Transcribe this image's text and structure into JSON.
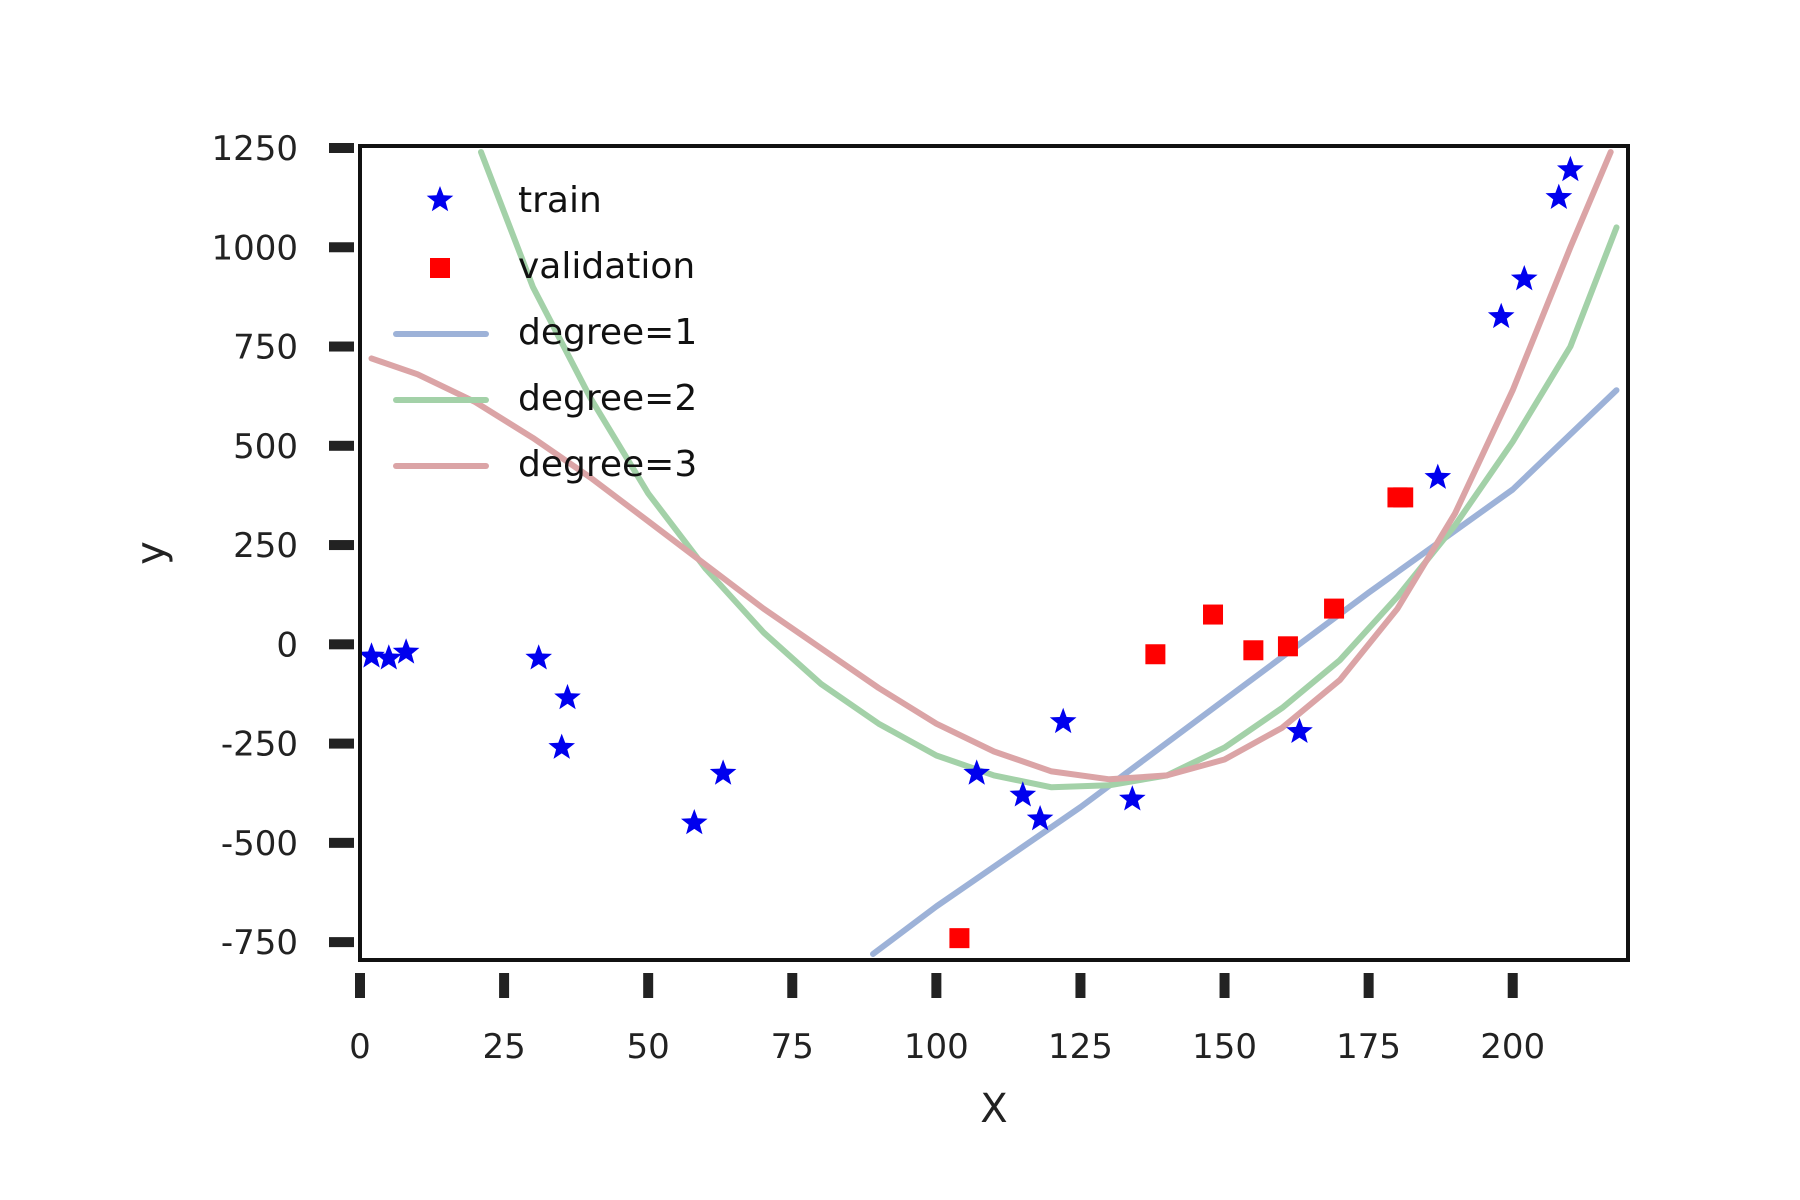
{
  "chart_data": {
    "type": "scatter",
    "xlabel": "X",
    "ylabel": "y",
    "xlim": [
      0,
      220
    ],
    "ylim": [
      -790,
      1250
    ],
    "xticks": [
      0,
      25,
      50,
      75,
      100,
      125,
      150,
      175,
      200
    ],
    "yticks": [
      1250,
      1000,
      750,
      500,
      250,
      0,
      -250,
      -500,
      -750
    ],
    "legend_position": "upper-left",
    "grid": false,
    "series": [
      {
        "name": "train",
        "kind": "scatter",
        "marker": "star",
        "color": "#0000ee",
        "points": [
          {
            "x": 2,
            "y": -30
          },
          {
            "x": 5,
            "y": -35
          },
          {
            "x": 8,
            "y": -20
          },
          {
            "x": 31,
            "y": -35
          },
          {
            "x": 36,
            "y": -135
          },
          {
            "x": 35,
            "y": -260
          },
          {
            "x": 58,
            "y": -450
          },
          {
            "x": 63,
            "y": -325
          },
          {
            "x": 107,
            "y": -325
          },
          {
            "x": 115,
            "y": -380
          },
          {
            "x": 118,
            "y": -440
          },
          {
            "x": 122,
            "y": -195
          },
          {
            "x": 134,
            "y": -390
          },
          {
            "x": 163,
            "y": -220
          },
          {
            "x": 187,
            "y": 420
          },
          {
            "x": 198,
            "y": 825
          },
          {
            "x": 202,
            "y": 920
          },
          {
            "x": 208,
            "y": 1125
          },
          {
            "x": 210,
            "y": 1195
          }
        ]
      },
      {
        "name": "validation",
        "kind": "scatter",
        "marker": "square",
        "color": "#ff0000",
        "points": [
          {
            "x": 104,
            "y": -740
          },
          {
            "x": 138,
            "y": -25
          },
          {
            "x": 148,
            "y": 75
          },
          {
            "x": 155,
            "y": -15
          },
          {
            "x": 161,
            "y": -5
          },
          {
            "x": 169,
            "y": 90
          },
          {
            "x": 180,
            "y": 370
          },
          {
            "x": 181,
            "y": 370
          }
        ]
      },
      {
        "name": "degree=1",
        "kind": "line",
        "color": "#9db2d8",
        "points": [
          {
            "x": 89,
            "y": -780
          },
          {
            "x": 100,
            "y": -660
          },
          {
            "x": 125,
            "y": -410
          },
          {
            "x": 150,
            "y": -140
          },
          {
            "x": 175,
            "y": 130
          },
          {
            "x": 200,
            "y": 390
          },
          {
            "x": 218,
            "y": 640
          }
        ]
      },
      {
        "name": "degree=2",
        "kind": "line",
        "color": "#a3d1a8",
        "points": [
          {
            "x": 21,
            "y": 1240
          },
          {
            "x": 30,
            "y": 900
          },
          {
            "x": 40,
            "y": 620
          },
          {
            "x": 50,
            "y": 380
          },
          {
            "x": 60,
            "y": 190
          },
          {
            "x": 70,
            "y": 30
          },
          {
            "x": 80,
            "y": -100
          },
          {
            "x": 90,
            "y": -200
          },
          {
            "x": 100,
            "y": -280
          },
          {
            "x": 110,
            "y": -330
          },
          {
            "x": 120,
            "y": -360
          },
          {
            "x": 130,
            "y": -355
          },
          {
            "x": 140,
            "y": -330
          },
          {
            "x": 150,
            "y": -260
          },
          {
            "x": 160,
            "y": -160
          },
          {
            "x": 170,
            "y": -40
          },
          {
            "x": 180,
            "y": 120
          },
          {
            "x": 190,
            "y": 300
          },
          {
            "x": 200,
            "y": 510
          },
          {
            "x": 210,
            "y": 750
          },
          {
            "x": 218,
            "y": 1050
          }
        ]
      },
      {
        "name": "degree=3",
        "kind": "line",
        "color": "#dba4a6",
        "points": [
          {
            "x": 2,
            "y": 720
          },
          {
            "x": 10,
            "y": 680
          },
          {
            "x": 20,
            "y": 610
          },
          {
            "x": 30,
            "y": 520
          },
          {
            "x": 40,
            "y": 420
          },
          {
            "x": 50,
            "y": 310
          },
          {
            "x": 60,
            "y": 200
          },
          {
            "x": 70,
            "y": 90
          },
          {
            "x": 80,
            "y": -10
          },
          {
            "x": 90,
            "y": -110
          },
          {
            "x": 100,
            "y": -200
          },
          {
            "x": 110,
            "y": -270
          },
          {
            "x": 120,
            "y": -320
          },
          {
            "x": 130,
            "y": -340
          },
          {
            "x": 140,
            "y": -330
          },
          {
            "x": 150,
            "y": -290
          },
          {
            "x": 160,
            "y": -210
          },
          {
            "x": 170,
            "y": -90
          },
          {
            "x": 180,
            "y": 90
          },
          {
            "x": 190,
            "y": 330
          },
          {
            "x": 200,
            "y": 640
          },
          {
            "x": 210,
            "y": 1000
          },
          {
            "x": 217,
            "y": 1240
          }
        ]
      }
    ]
  }
}
